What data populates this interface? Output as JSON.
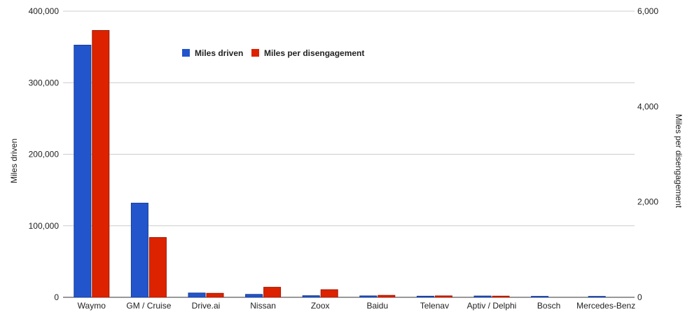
{
  "chart_data": {
    "type": "bar",
    "categories": [
      "Waymo",
      "GM / Cruise",
      "Drive.ai",
      "Nissan",
      "Zoox",
      "Baidu",
      "Telenav",
      "Aptiv / Delphi",
      "Bosch",
      "Mercedes-Benz"
    ],
    "series": [
      {
        "name": "Miles driven",
        "axis": "left",
        "color": "#2255cc",
        "values": [
          352545,
          131676,
          6015,
          4099,
          2244,
          1971,
          1581,
          1811,
          1349,
          1300
        ]
      },
      {
        "name": "Miles per disengagement",
        "axis": "right",
        "color": "#dd2200",
        "values": [
          5596,
          1254,
          84,
          211,
          160,
          41,
          30,
          25,
          0,
          0
        ]
      }
    ],
    "ylabel": "Miles driven",
    "y2label": "Miles per disengagement",
    "ylim": [
      0,
      400000
    ],
    "y2lim": [
      0,
      6000
    ],
    "yticks": [
      "0",
      "100,000",
      "200,000",
      "300,000",
      "400,000"
    ],
    "y2ticks": [
      "0",
      "2,000",
      "4,000",
      "6,000"
    ],
    "grid": true,
    "legend_position": "top-center"
  }
}
